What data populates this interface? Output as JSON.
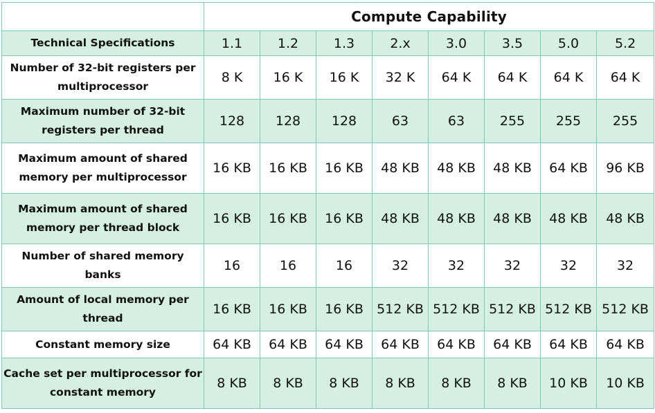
{
  "header": {
    "title": "Compute Capability",
    "spec_label": "Technical Specifications",
    "versions": [
      "1.1",
      "1.2",
      "1.3",
      "2.x",
      "3.0",
      "3.5",
      "5.0",
      "5.2"
    ]
  },
  "rows": [
    {
      "label": "Number of 32-bit registers per multiprocessor",
      "values": [
        "8 K",
        "16 K",
        "16 K",
        "32 K",
        "64 K",
        "64 K",
        "64 K",
        "64 K"
      ]
    },
    {
      "label": "Maximum number of 32-bit registers per thread",
      "values": [
        "128",
        "128",
        "128",
        "63",
        "63",
        "255",
        "255",
        "255"
      ]
    },
    {
      "label": "Maximum amount of shared memory per multiprocessor",
      "values": [
        "16 KB",
        "16 KB",
        "16 KB",
        "48 KB",
        "48 KB",
        "48 KB",
        "64 KB",
        "96 KB"
      ]
    },
    {
      "label": "Maximum amount of shared memory per thread block",
      "values": [
        "16 KB",
        "16 KB",
        "16 KB",
        "48 KB",
        "48 KB",
        "48 KB",
        "48 KB",
        "48 KB"
      ]
    },
    {
      "label": "Number of shared memory banks",
      "values": [
        "16",
        "16",
        "16",
        "32",
        "32",
        "32",
        "32",
        "32"
      ]
    },
    {
      "label": "Amount of local memory per thread",
      "values": [
        "16 KB",
        "16 KB",
        "16 KB",
        "512 KB",
        "512 KB",
        "512 KB",
        "512 KB",
        "512 KB"
      ]
    },
    {
      "label": "Constant memory size",
      "values": [
        "64 KB",
        "64 KB",
        "64 KB",
        "64 KB",
        "64 KB",
        "64 KB",
        "64 KB",
        "64 KB"
      ]
    },
    {
      "label": "Cache set per multiprocessor for constant memory",
      "values": [
        "8 KB",
        "8 KB",
        "8 KB",
        "8 KB",
        "8 KB",
        "8 KB",
        "10 KB",
        "10 KB"
      ]
    }
  ]
}
